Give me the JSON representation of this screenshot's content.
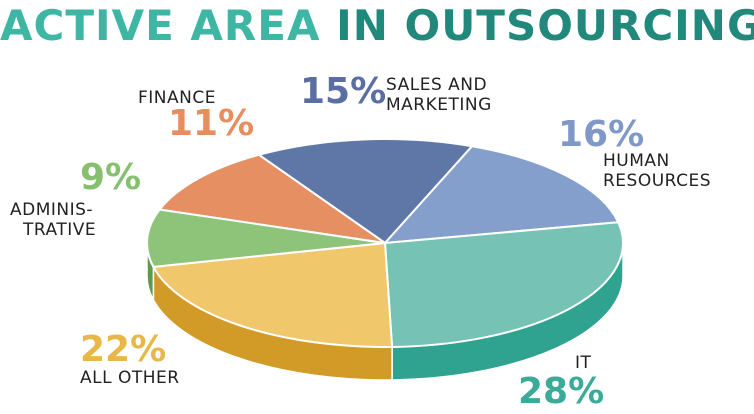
{
  "title": {
    "part1": "ACTIVE AREA",
    "part2": "IN OUTSOURCING",
    "colors": [
      "#3db6a3",
      "#21897b"
    ]
  },
  "chart_data": {
    "type": "pie",
    "title": "ACTIVE AREA IN OUTSOURCING",
    "style": "3d-tilted",
    "slices": [
      {
        "label": "SALES AND MARKETING",
        "label_lines": [
          "SALES AND",
          "MARKETING"
        ],
        "value": 15,
        "value_label": "15%",
        "color": "#5e77a6",
        "side_color": "#3e5683",
        "pct_color": "#5a6ea3"
      },
      {
        "label": "HUMAN RESOURCES",
        "label_lines": [
          "HUMAN",
          "RESOURCES"
        ],
        "value": 16,
        "value_label": "16%",
        "color": "#849fcb",
        "side_color": "#5e79a8",
        "pct_color": "#7f98c7"
      },
      {
        "label": "IT",
        "label_lines": [
          "IT"
        ],
        "value": 28,
        "value_label": "28%",
        "color": "#76c2b5",
        "side_color": "#2fa38f",
        "pct_color": "#3aab98"
      },
      {
        "label": "ALL OTHER",
        "label_lines": [
          "ALL OTHER"
        ],
        "value": 22,
        "value_label": "22%",
        "color": "#f0c76a",
        "side_color": "#d29a27",
        "pct_color": "#e9b748"
      },
      {
        "label": "ADMINISTRATIVE",
        "label_lines": [
          "ADMINIS-",
          "TRATIVE"
        ],
        "value": 9,
        "value_label": "9%",
        "color": "#8ec47a",
        "side_color": "#5e9a4c",
        "pct_color": "#86c06e"
      },
      {
        "label": "FINANCE",
        "label_lines": [
          "FINANCE"
        ],
        "value": 11,
        "value_label": "11%",
        "color": "#e58f63",
        "side_color": "#c0653a",
        "pct_color": "#e98c5e"
      }
    ]
  }
}
